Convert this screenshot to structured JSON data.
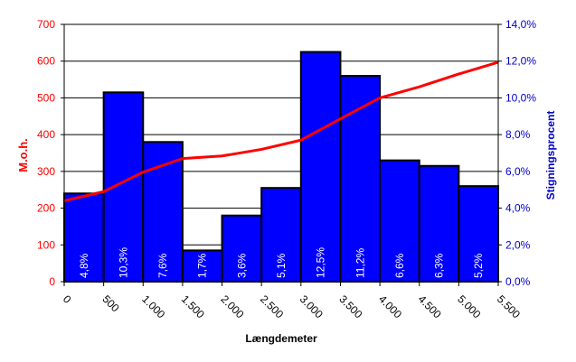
{
  "chart_data": {
    "type": "bar",
    "xlabel": "Længdemeter",
    "ylabel_left": "M.o.h.",
    "ylabel_right": "Stigningsprocent",
    "x_ticks": [
      "0",
      "500",
      "1.000",
      "1.500",
      "2.000",
      "2.500",
      "3.000",
      "3.500",
      "4.000",
      "4.500",
      "5.000",
      "5.500"
    ],
    "y_left_ticks": [
      "0",
      "100",
      "200",
      "300",
      "400",
      "500",
      "600",
      "700"
    ],
    "y_right_ticks": [
      "0,0%",
      "2,0%",
      "4,0%",
      "6,0%",
      "8,0%",
      "10,0%",
      "12,0%",
      "14,0%"
    ],
    "y_left_range": [
      0,
      700
    ],
    "y_right_range": [
      0,
      14
    ],
    "x_range": [
      0,
      5500
    ],
    "grid": true,
    "bars": {
      "name": "Stigningsprocent",
      "axis": "right",
      "color": "#0000ff",
      "x_start": [
        0,
        500,
        1000,
        1500,
        2000,
        2500,
        3000,
        3500,
        4000,
        4500,
        5000
      ],
      "values": [
        4.8,
        10.3,
        7.6,
        1.7,
        3.6,
        5.1,
        12.5,
        11.2,
        6.6,
        6.3,
        5.2
      ],
      "labels": [
        "4,8%",
        "10,3%",
        "7,6%",
        "1,7%",
        "3,6%",
        "5,1%",
        "12,5%",
        "11,2%",
        "6,6%",
        "6,3%",
        "5,2%"
      ]
    },
    "line": {
      "name": "M.o.h.",
      "axis": "left",
      "color": "#ff0000",
      "x": [
        0,
        500,
        1000,
        1500,
        2000,
        2500,
        3000,
        3500,
        4000,
        4500,
        5000,
        5500
      ],
      "values": [
        220,
        245,
        298,
        335,
        342,
        360,
        385,
        443,
        500,
        530,
        565,
        597
      ]
    },
    "colors": {
      "left_axis": "#ff0000",
      "right_axis": "#0000cc",
      "bar_fill": "#0000ff"
    }
  }
}
